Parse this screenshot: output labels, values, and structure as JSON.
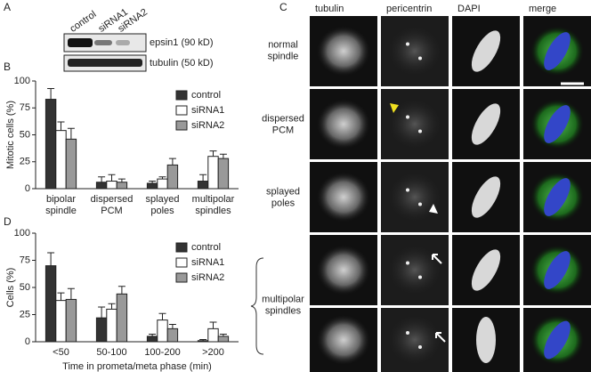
{
  "panel_labels": [
    "A",
    "B",
    "C",
    "D"
  ],
  "blot": {
    "lanes": [
      "control",
      "siRNA1",
      "siRNA2"
    ],
    "bands": [
      "epsin1 (90 kD)",
      "tubulin (50 kD)"
    ]
  },
  "microscopy": {
    "columns": [
      "tubulin",
      "pericentrin",
      "DAPI",
      "merge"
    ],
    "rows": [
      "normal spindle",
      "dispersed PCM",
      "splayed poles",
      "multipolar spindles"
    ]
  },
  "chart_data": [
    {
      "type": "bar",
      "y_label": "Mitotic cells (%)",
      "categories": [
        "bipolar spindle",
        "dispersed PCM",
        "splayed poles",
        "multipolar spindles"
      ],
      "series": [
        {
          "name": "control",
          "color": "#333333",
          "values": [
            83,
            6,
            5,
            7
          ],
          "errors": [
            10,
            5,
            2,
            6
          ]
        },
        {
          "name": "siRNA1",
          "color": "#ffffff",
          "values": [
            54,
            7,
            9,
            30
          ],
          "errors": [
            8,
            6,
            2,
            5
          ]
        },
        {
          "name": "siRNA2",
          "color": "#999999",
          "values": [
            46,
            6,
            22,
            28
          ],
          "errors": [
            10,
            3,
            6,
            4
          ]
        }
      ],
      "ylim": [
        0,
        100
      ],
      "yticks": [
        0,
        25,
        50,
        75,
        100
      ],
      "legend": "upper right"
    },
    {
      "type": "bar",
      "y_label": "Cells (%)",
      "x_label": "Time in prometa/meta phase (min)",
      "categories": [
        "<50",
        "50-100",
        "100-200",
        ">200"
      ],
      "series": [
        {
          "name": "control",
          "color": "#333333",
          "values": [
            70,
            22,
            5,
            1
          ],
          "errors": [
            12,
            10,
            2,
            1
          ]
        },
        {
          "name": "siRNA1",
          "color": "#ffffff",
          "values": [
            38,
            30,
            20,
            12
          ],
          "errors": [
            7,
            5,
            6,
            6
          ]
        },
        {
          "name": "siRNA2",
          "color": "#999999",
          "values": [
            39,
            44,
            12,
            5
          ],
          "errors": [
            10,
            7,
            4,
            2
          ]
        }
      ],
      "ylim": [
        0,
        100
      ],
      "yticks": [
        0,
        25,
        50,
        75,
        100
      ],
      "legend": "upper right"
    }
  ]
}
